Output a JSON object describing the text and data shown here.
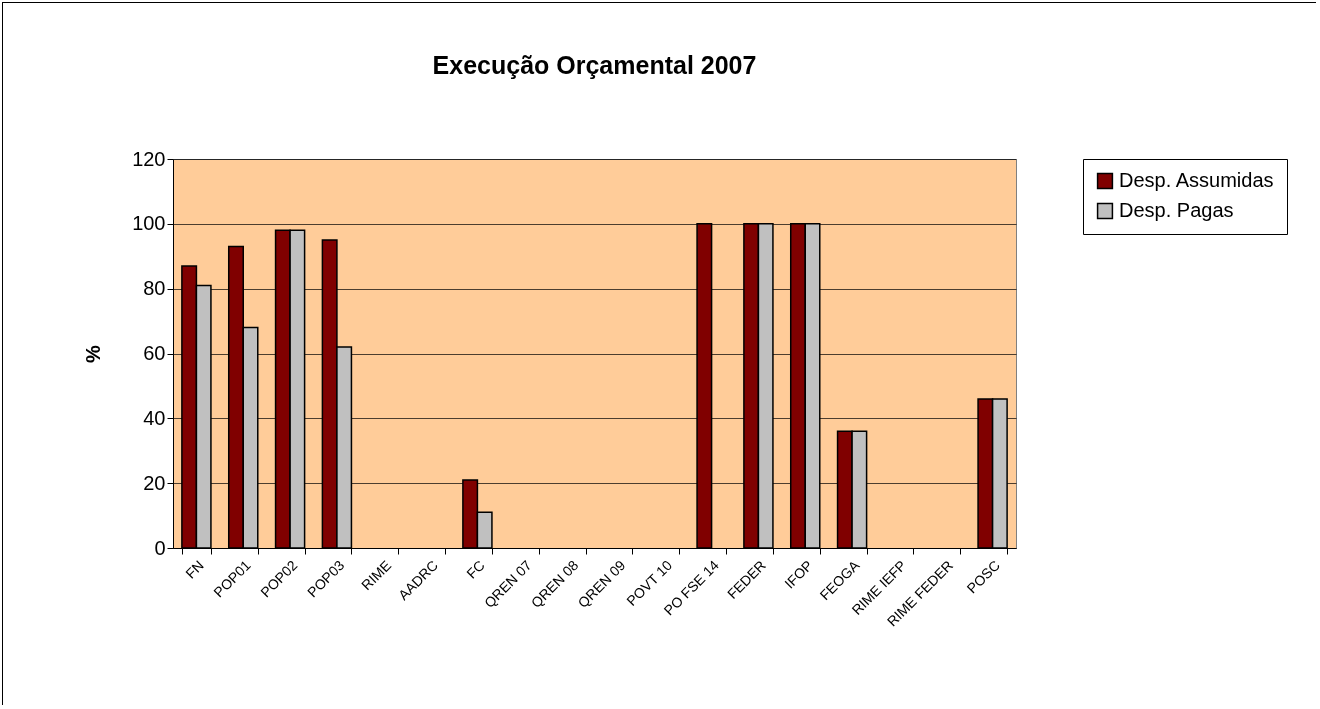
{
  "chart_data": {
    "type": "bar",
    "title": "Execução Orçamental 2007",
    "ylabel": "%",
    "categories": [
      "FN",
      "POP01",
      "POP02",
      "POP03",
      "RIME",
      "AADRC",
      "FC",
      "QREN 07",
      "QREN 08",
      "QREN 09",
      "POVT 10",
      "PO FSE 14",
      "FEDER",
      "IFOP",
      "FEOGA",
      "RIME IEFP",
      "RIME FEDER",
      "POSC"
    ],
    "series": [
      {
        "name": "Desp. Assumidas",
        "color": "#800000",
        "values": [
          87,
          93,
          98,
          95,
          null,
          null,
          21,
          null,
          null,
          null,
          null,
          100,
          100,
          100,
          36,
          null,
          null,
          46
        ]
      },
      {
        "name": "Desp. Pagas",
        "color": "#c0c0c0",
        "values": [
          81,
          68,
          98,
          62,
          null,
          null,
          11,
          null,
          null,
          null,
          null,
          null,
          100,
          100,
          36,
          null,
          null,
          46
        ]
      }
    ],
    "ylim": [
      0,
      120
    ],
    "yticks": [
      0,
      20,
      40,
      60,
      80,
      100,
      120
    ],
    "grid": "y",
    "legend": "right"
  }
}
